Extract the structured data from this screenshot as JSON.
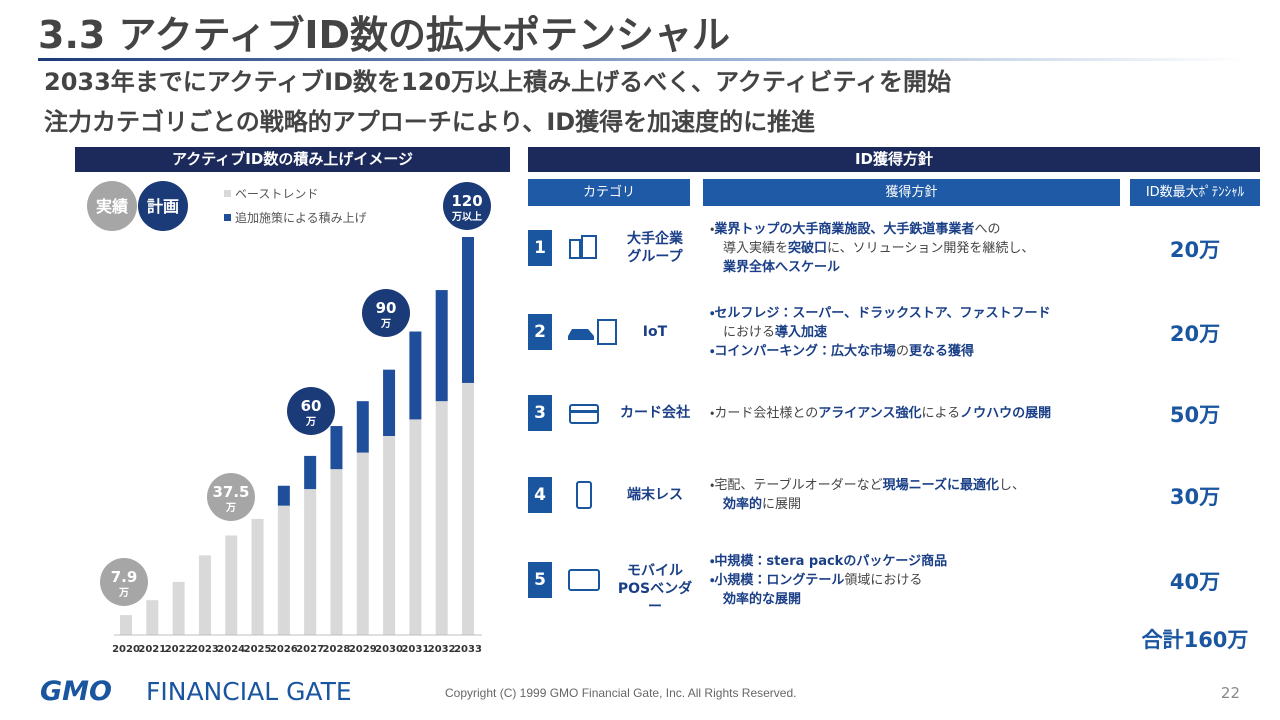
{
  "header": {
    "title": "3.3 アクティブID数の拡大ポテンシャル",
    "subtitle_lines": [
      "2033年までにアクティブID数を120万以上積み上げるべく、アクティビティを開始",
      "注力カテゴリごとの戦略的アプローチにより、ID獲得を加速度的に推進"
    ]
  },
  "chart_panel": {
    "heading": "アクティブID数の積み上げイメージ",
    "badges": [
      {
        "text": "実績",
        "color": "#a6a6a6"
      },
      {
        "text": "計画",
        "color": "#1b3a78"
      }
    ]
  },
  "chart_data": {
    "type": "stacked-bar",
    "categories": [
      "2020",
      "2021",
      "2022",
      "2023",
      "2024",
      "2025",
      "2026",
      "2027",
      "2028",
      "2029",
      "2030",
      "2031",
      "2032",
      "2033"
    ],
    "series": [
      {
        "name": "ベーストレンド",
        "color": "#d9d9d9",
        "values": [
          6,
          10.5,
          16,
          24,
          30,
          35,
          39,
          44,
          50,
          55,
          60,
          65,
          70.5,
          76
        ]
      },
      {
        "name": "追加施策による積み上げ",
        "color": "#1f4e9a",
        "values": [
          null,
          null,
          null,
          null,
          null,
          null,
          6,
          10,
          13,
          15.5,
          20,
          26.5,
          33.5,
          44
        ]
      }
    ],
    "ylim": [
      0,
      120
    ],
    "annotations": [
      {
        "label": "7.9",
        "unit": "万",
        "color": "#a6a6a6"
      },
      {
        "label": "37.5",
        "unit": "万",
        "color": "#a6a6a6"
      },
      {
        "label": "60",
        "unit": "万",
        "color": "#1b3a78"
      },
      {
        "label": "90",
        "unit": "万",
        "color": "#1b3a78"
      },
      {
        "label": "120",
        "unit": "万以上",
        "color": "#1b3a78"
      }
    ]
  },
  "policy_table": {
    "heading": "ID獲得方針",
    "columns": [
      "カテゴリ",
      "獲得方針",
      "ID数最大ﾎﾟﾃﾝｼｬﾙ"
    ],
    "rows": [
      {
        "number": "1",
        "category": [
          "大手企業",
          "グループ"
        ],
        "policy": [
          [
            {
              "text": "・",
              "bold": false
            },
            {
              "text": "業界トップの大手商業施設、大手鉄道事業者",
              "bold": true
            },
            {
              "text": "への",
              "bold": false
            }
          ],
          [
            {
              "text": "導入実績を",
              "bold": false
            },
            {
              "text": "突破口",
              "bold": true
            },
            {
              "text": "に、ソリューション開発を継続し、",
              "bold": false
            }
          ],
          [
            {
              "text": "業界全体へスケール",
              "bold": true
            }
          ]
        ],
        "potential": "20万"
      },
      {
        "number": "2",
        "category": [
          "IoT"
        ],
        "policy": [
          [
            {
              "text": "・セルフレジ：スーパー、ドラックストア、ファストフード",
              "bold": true
            }
          ],
          [
            {
              "text": "における",
              "bold": false
            },
            {
              "text": "導入加速",
              "bold": true
            }
          ],
          [
            {
              "text": "・コインパーキング：広大な市場",
              "bold": true
            },
            {
              "text": "の",
              "bold": false
            },
            {
              "text": "更なる獲得",
              "bold": true
            }
          ]
        ],
        "potential": "20万"
      },
      {
        "number": "3",
        "category": [
          "カード会社"
        ],
        "policy": [
          [
            {
              "text": "・カード会社様との",
              "bold": false
            },
            {
              "text": "アライアンス強化",
              "bold": true
            },
            {
              "text": "による",
              "bold": false
            },
            {
              "text": "ノウハウの展開",
              "bold": true
            }
          ]
        ],
        "potential": "50万"
      },
      {
        "number": "4",
        "category": [
          "端末レス"
        ],
        "policy": [
          [
            {
              "text": "・宅配、テーブルオーダーなど",
              "bold": false
            },
            {
              "text": "現場ニーズに最適化",
              "bold": true
            },
            {
              "text": "し、",
              "bold": false
            }
          ],
          [
            {
              "text": "効率的",
              "bold": true
            },
            {
              "text": "に展開",
              "bold": false
            }
          ]
        ],
        "potential": "30万"
      },
      {
        "number": "5",
        "category": [
          "モバイル",
          "POSベンダー"
        ],
        "policy": [
          [
            {
              "text": "・中規模：stera packのパッケージ商品",
              "bold": true
            }
          ],
          [
            {
              "text": "・小規模：ロングテール",
              "bold": true
            },
            {
              "text": "領域における",
              "bold": false
            }
          ],
          [
            {
              "text": "効率的な展開",
              "bold": true
            }
          ]
        ],
        "potential": "40万"
      }
    ],
    "total": "合計160万"
  },
  "footer": {
    "logo_mark": "GMO",
    "logo_text": "FINANCIAL GATE",
    "copyright": "Copyright (C) 1999 GMO Financial Gate, Inc. All Rights Reserved.",
    "page": "22"
  }
}
